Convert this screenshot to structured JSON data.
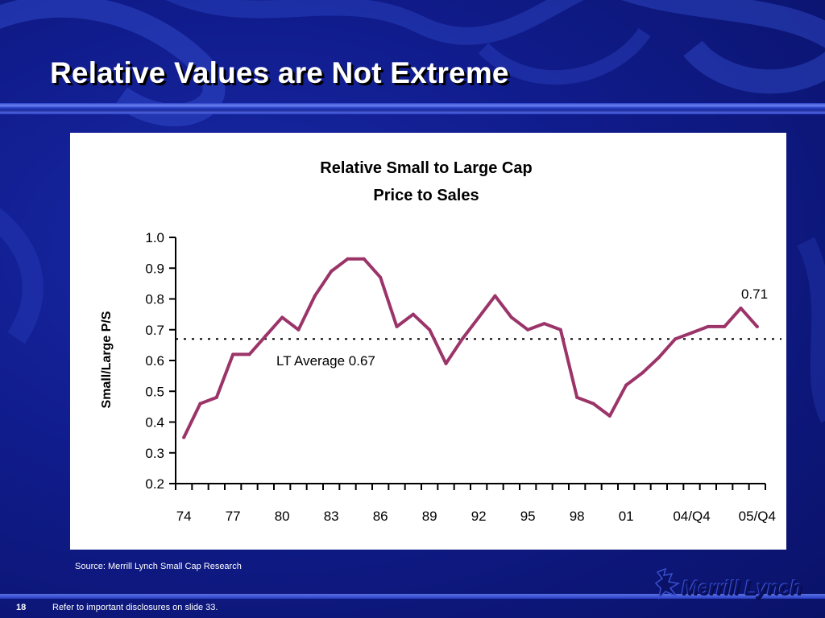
{
  "slide": {
    "title": "Relative Values are Not Extreme",
    "source": "Source: Merrill Lynch Small Cap Research",
    "page_number": "18",
    "disclosure": "Refer to important disclosures on slide 33.",
    "brand": "Merrill Lynch"
  },
  "colors": {
    "line": "#9b3468",
    "background": "#101c8c"
  },
  "chart_data": {
    "type": "line",
    "title": [
      "Relative Small to Large Cap",
      "Price to Sales"
    ],
    "ylabel": "Small/Large P/S",
    "xlabel": "",
    "ylim": [
      0.2,
      1.0
    ],
    "yticks": [
      "0.2",
      "0.3",
      "0.4",
      "0.5",
      "0.6",
      "0.7",
      "0.8",
      "0.9",
      "1.0"
    ],
    "x_tick_labels": [
      "74",
      "77",
      "80",
      "83",
      "86",
      "89",
      "92",
      "95",
      "98",
      "01",
      "04/Q4",
      "05/Q4"
    ],
    "x": [
      "74",
      "75",
      "76",
      "77",
      "78",
      "79",
      "80",
      "81",
      "82",
      "83",
      "84",
      "85",
      "86",
      "87",
      "88",
      "89",
      "90",
      "91",
      "92",
      "93",
      "94",
      "95",
      "96",
      "97",
      "98",
      "99",
      "00",
      "01",
      "02",
      "03",
      "04",
      "04/Q4",
      "05/Q1",
      "05/Q2",
      "05/Q3",
      "05/Q4"
    ],
    "values": [
      0.35,
      0.46,
      0.48,
      0.62,
      0.62,
      0.68,
      0.74,
      0.7,
      0.81,
      0.89,
      0.93,
      0.93,
      0.87,
      0.71,
      0.75,
      0.7,
      0.59,
      0.67,
      0.74,
      0.81,
      0.74,
      0.7,
      0.72,
      0.7,
      0.48,
      0.46,
      0.42,
      0.52,
      0.56,
      0.61,
      0.67,
      0.69,
      0.71,
      0.71,
      0.77,
      0.71
    ],
    "reference_line": {
      "label": "LT Average  0.67",
      "value": 0.67
    },
    "end_label": "0.71",
    "grid": false
  }
}
